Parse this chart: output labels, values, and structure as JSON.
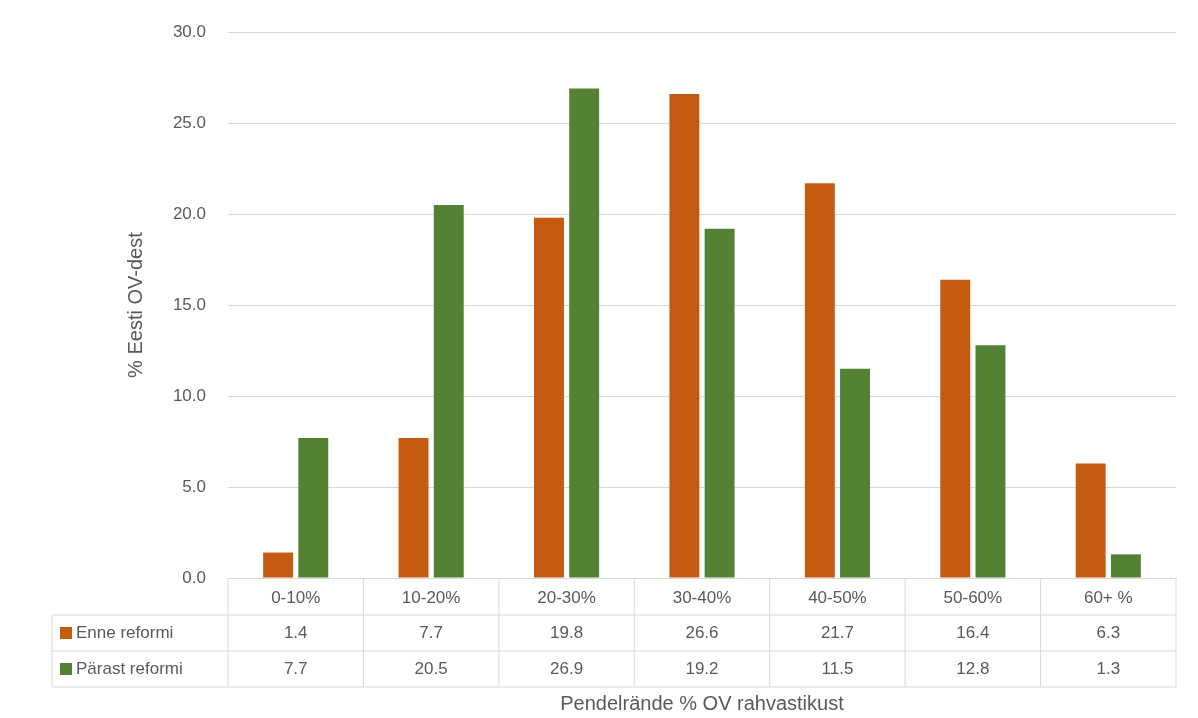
{
  "chart_data": {
    "type": "bar",
    "xlabel": "Pendelrände % OV rahvastikust",
    "ylabel": "% Eesti OV-dest",
    "categories": [
      "0-10%",
      "10-20%",
      "20-30%",
      "30-40%",
      "40-50%",
      "50-60%",
      "60+ %"
    ],
    "series": [
      {
        "name": "Enne reformi",
        "color": "#c55a11",
        "values": [
          1.4,
          7.7,
          19.8,
          26.6,
          21.7,
          16.4,
          6.3
        ]
      },
      {
        "name": "Pärast reformi",
        "color": "#548235",
        "values": [
          7.7,
          20.5,
          26.9,
          19.2,
          11.5,
          12.8,
          1.3
        ]
      }
    ],
    "ylim": [
      0,
      30
    ],
    "yticks": [
      {
        "value": 0,
        "label": "0.0"
      },
      {
        "value": 5,
        "label": "5.0"
      },
      {
        "value": 10,
        "label": "10.0"
      },
      {
        "value": 15,
        "label": "15.0"
      },
      {
        "value": 20,
        "label": "20.0"
      },
      {
        "value": 25,
        "label": "25.0"
      },
      {
        "value": 30,
        "label": "30.0"
      }
    ],
    "grid": "y",
    "legend": "bottom",
    "data_labels": true
  }
}
